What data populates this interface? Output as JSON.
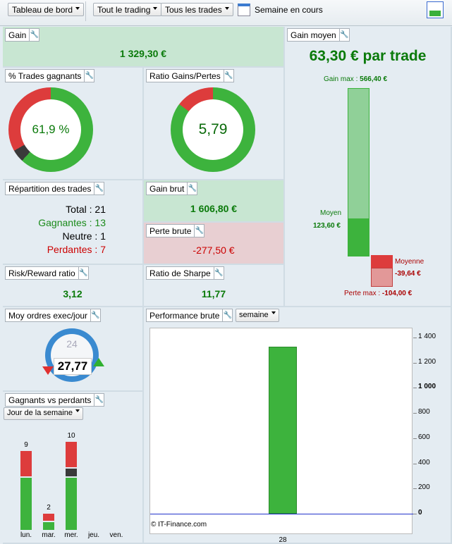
{
  "toolbar": {
    "dashboard": "Tableau de bord",
    "trading": "Tout le trading",
    "trades": "Tous les trades",
    "period": "Semaine en cours"
  },
  "gain": {
    "title": "Gain",
    "value": "1 329,30 €"
  },
  "win_pct": {
    "title": "% Trades gagnants",
    "value": "61,9 %",
    "win": 61.9,
    "neutral": 4.8,
    "loss": 33.3
  },
  "ratio": {
    "title": "Ratio Gains/Pertes",
    "value": "5,79",
    "loss_pct": 14.7
  },
  "avg_gain": {
    "title": "Gain moyen",
    "value": "63,30 € par trade",
    "gain_max_label": "Gain max :",
    "gain_max": "566,40 €",
    "moyen_label": "Moyen",
    "moyen": "123,60 €",
    "moyenne_label": "Moyenne",
    "moyenne": "-39,64 €",
    "perte_max_label": "Perte max :",
    "perte_max": "-104,00 €"
  },
  "repartition": {
    "title": "Répartition des trades",
    "total": "Total : 21",
    "gagnantes": "Gagnantes : 13",
    "neutre": "Neutre : 1",
    "perdantes": "Perdantes : 7"
  },
  "gain_brut": {
    "title": "Gain brut",
    "value": "1 606,80 €"
  },
  "perte_brute": {
    "title": "Perte brute",
    "value": "-277,50 €"
  },
  "rr": {
    "title": "Risk/Reward ratio",
    "value": "3,12"
  },
  "sharpe": {
    "title": "Ratio de Sharpe",
    "value": "11,77"
  },
  "orders": {
    "title": "Moy ordres exec/jour",
    "value": "27,77",
    "clock": "24"
  },
  "gvp": {
    "title": "Gagnants vs perdants",
    "select": "Jour de la semaine",
    "days": [
      {
        "label": "lun.",
        "total": "9",
        "win": 6,
        "neutral": 0,
        "loss": 3
      },
      {
        "label": "mar.",
        "total": "2",
        "win": 1,
        "neutral": 0,
        "loss": 1
      },
      {
        "label": "mer.",
        "total": "10",
        "win": 6,
        "neutral": 1,
        "loss": 3
      },
      {
        "label": "jeu.",
        "total": "",
        "win": 0,
        "neutral": 0,
        "loss": 0
      },
      {
        "label": "ven.",
        "total": "",
        "win": 0,
        "neutral": 0,
        "loss": 0
      }
    ]
  },
  "perf": {
    "title": "Performance brute",
    "select": "semaine",
    "copyright": "© IT-Finance.com"
  },
  "chart_data": {
    "type": "bar",
    "categories": [
      "28"
    ],
    "values": [
      1329.3
    ],
    "ylim": [
      -100,
      1450
    ],
    "yticks": [
      "1 400",
      "1 200",
      "1 000",
      "800",
      "600",
      "400",
      "200",
      "0"
    ],
    "ytick_values": [
      1400,
      1200,
      1000,
      800,
      600,
      400,
      200,
      0
    ]
  }
}
